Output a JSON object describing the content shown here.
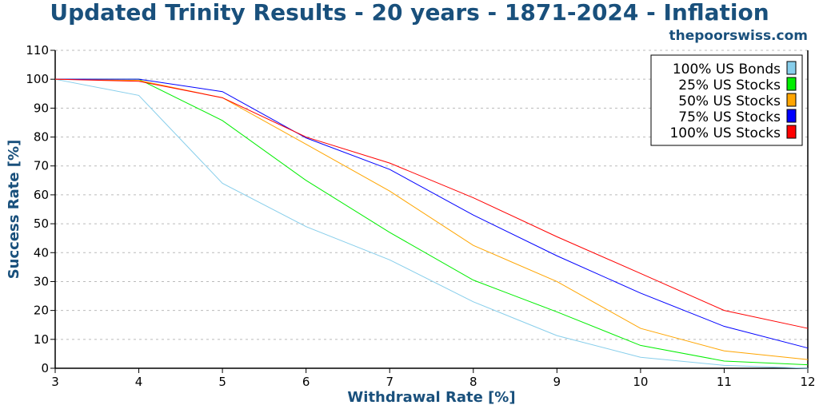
{
  "chart_data": {
    "type": "line",
    "title": "Updated Trinity Results - 20 years - 1871-2024 - Inflation",
    "watermark": "thepoorswiss.com",
    "xlabel": "Withdrawal Rate [%]",
    "ylabel": "Success Rate [%]",
    "xlim": [
      3,
      12
    ],
    "ylim": [
      0,
      110
    ],
    "xticks": [
      3,
      4,
      5,
      6,
      7,
      8,
      9,
      10,
      11,
      12
    ],
    "yticks": [
      0,
      10,
      20,
      30,
      40,
      50,
      60,
      70,
      80,
      90,
      100,
      110
    ],
    "grid": "horizontal dashed",
    "legend_position": "top-right",
    "x": [
      3,
      4,
      5,
      6,
      7,
      8,
      9,
      10,
      11,
      12
    ],
    "series": [
      {
        "name": "100% US Bonds",
        "color": "#87ceeb",
        "values": [
          100,
          94.4,
          64,
          49,
          37.5,
          23,
          11.3,
          3.8,
          1,
          0
        ]
      },
      {
        "name": "25% US Stocks",
        "color": "#00ee00",
        "values": [
          100,
          100,
          85.7,
          65,
          47,
          30.5,
          19.5,
          7.9,
          2.5,
          1.2
        ]
      },
      {
        "name": "50% US Stocks",
        "color": "#ffa500",
        "values": [
          100,
          99.6,
          93.6,
          77.5,
          61.3,
          42.5,
          30,
          13.8,
          6,
          3
        ]
      },
      {
        "name": "75% US Stocks",
        "color": "#0000ff",
        "values": [
          100,
          100,
          95.7,
          79.7,
          68.8,
          53,
          38.9,
          26,
          14.5,
          7
        ]
      },
      {
        "name": "100% US Stocks",
        "color": "#ff0000",
        "values": [
          100,
          99.3,
          93.6,
          80,
          71,
          59,
          45.5,
          32.8,
          20,
          13.8
        ]
      }
    ]
  }
}
